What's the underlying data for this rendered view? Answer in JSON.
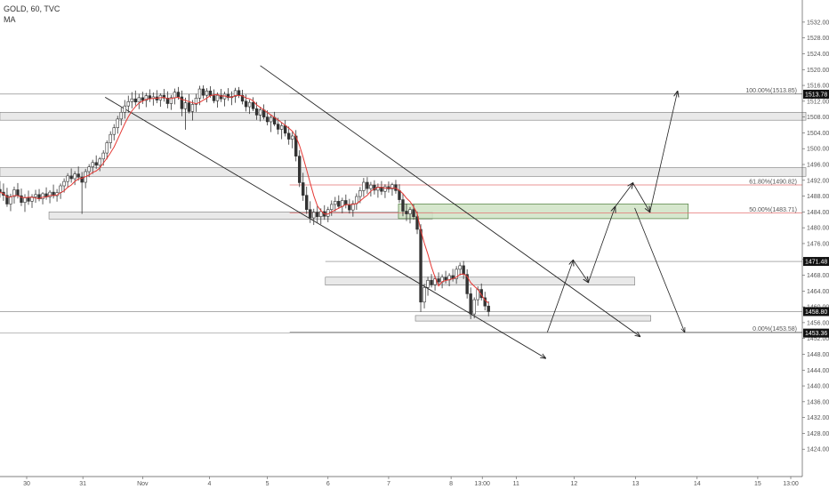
{
  "legend": {
    "symbol_line": "GOLD, 60, TVC",
    "indicator": "MA"
  },
  "colors": {
    "candle": "#333333",
    "ma": "#e53935",
    "fib": "#e57373",
    "zone_fill": "#e9e9e9",
    "zone_edge": "#7a7a7a",
    "green_fill": "#cfe3c4",
    "green_edge": "#4c7a3a",
    "axis_text": "#555555",
    "grid_line": "#7a7a7a"
  },
  "chart_data": {
    "type": "candlestick",
    "y_axis": {
      "min": 1420,
      "max": 1534,
      "ticks": [
        1424,
        1428,
        1432,
        1436,
        1440,
        1444,
        1448,
        1452,
        1456,
        1460,
        1464,
        1468,
        1472,
        1476,
        1480,
        1484,
        1488,
        1492,
        1496,
        1500,
        1504,
        1508,
        1512,
        1516,
        1520,
        1524,
        1528,
        1532
      ]
    },
    "x_axis": {
      "labels": [
        "30",
        "31",
        "Nov",
        "4",
        "5",
        "6",
        "7",
        "8",
        "13:00",
        "11",
        "12",
        "13",
        "14",
        "15",
        "13:00"
      ],
      "label_t": [
        0,
        63,
        130,
        205,
        270,
        338,
        406,
        476,
        511,
        549,
        614,
        683,
        752,
        820,
        857
      ]
    },
    "price_tags": [
      {
        "value": 1513.78,
        "label": "1513.78"
      },
      {
        "value": 1471.48,
        "label": "1471.48"
      },
      {
        "value": 1458.8,
        "label": "1458.80"
      },
      {
        "value": 1453.36,
        "label": "1453.36"
      }
    ],
    "fib_levels": [
      {
        "label": "100.00%(1513.85)",
        "value": 1513.85
      },
      {
        "label": "61.80%(1490.82)",
        "value": 1490.82
      },
      {
        "label": "50.00%(1483.71)",
        "value": 1483.71
      },
      {
        "label": "0.00%(1453.58)",
        "value": 1453.58
      }
    ],
    "zones": [
      {
        "y_top": 1509.2,
        "y_bottom": 1507.2,
        "t_start": -30,
        "t_end": 874
      },
      {
        "y_top": 1495.2,
        "y_bottom": 1493.0,
        "t_start": -30,
        "t_end": 874
      },
      {
        "y_top": 1484.0,
        "y_bottom": 1482.2,
        "t_start": 25,
        "t_end": 455
      },
      {
        "y_top": 1467.5,
        "y_bottom": 1465.5,
        "t_start": 335,
        "t_end": 682
      },
      {
        "y_top": 1457.8,
        "y_bottom": 1456.4,
        "t_start": 436,
        "t_end": 700
      }
    ],
    "green_zone": {
      "y_top": 1486.0,
      "y_bottom": 1482.3,
      "t_start": 417,
      "t_end": 742
    },
    "channel_lines": [
      {
        "t1": 262,
        "v1": 1521.0,
        "t2": 688,
        "v2": 1452.5
      },
      {
        "t1": 88,
        "v1": 1513.0,
        "t2": 582,
        "v2": 1447.0
      }
    ],
    "projection_path": [
      {
        "t": 584,
        "v": 1453.6
      },
      {
        "t": 613,
        "v": 1471.8
      },
      {
        "t": 630,
        "v": 1466.2
      },
      {
        "t": 660,
        "v": 1485.3
      },
      {
        "t": 680,
        "v": 1491.3
      },
      {
        "t": 699,
        "v": 1484.0
      },
      {
        "t": 730,
        "v": 1514.5
      }
    ],
    "projection_path_2": [
      {
        "t": 682,
        "v": 1485.0
      },
      {
        "t": 738,
        "v": 1453.6
      }
    ],
    "candles": [
      [
        -30,
        1489.7,
        1491.8,
        1487.6,
        1489.0
      ],
      [
        -26,
        1489.0,
        1491.2,
        1486.8,
        1488.2
      ],
      [
        -22,
        1488.2,
        1490.1,
        1485.3,
        1486.0
      ],
      [
        -18,
        1486.0,
        1488.6,
        1484.2,
        1487.9
      ],
      [
        -14,
        1487.9,
        1490.4,
        1486.1,
        1489.6
      ],
      [
        -10,
        1489.6,
        1491.3,
        1487.4,
        1488.1
      ],
      [
        -6,
        1488.1,
        1489.9,
        1485.5,
        1486.4
      ],
      [
        -2,
        1486.4,
        1488.5,
        1484.0,
        1487.6
      ],
      [
        2,
        1487.6,
        1489.4,
        1485.8,
        1486.7
      ],
      [
        6,
        1486.7,
        1488.5,
        1485.0,
        1487.8
      ],
      [
        10,
        1487.8,
        1489.6,
        1486.3,
        1488.4
      ],
      [
        14,
        1488.4,
        1489.8,
        1486.7,
        1487.3
      ],
      [
        18,
        1487.3,
        1489.0,
        1485.9,
        1488.6
      ],
      [
        22,
        1488.6,
        1490.2,
        1487.1,
        1487.8
      ],
      [
        26,
        1487.8,
        1489.5,
        1486.2,
        1489.0
      ],
      [
        30,
        1489.0,
        1490.9,
        1487.4,
        1488.1
      ],
      [
        34,
        1488.1,
        1489.8,
        1486.6,
        1488.9
      ],
      [
        38,
        1488.9,
        1491.2,
        1487.3,
        1490.6
      ],
      [
        42,
        1490.6,
        1492.5,
        1488.9,
        1491.7
      ],
      [
        46,
        1491.7,
        1493.8,
        1490.1,
        1493.1
      ],
      [
        50,
        1493.1,
        1495.0,
        1491.4,
        1492.4
      ],
      [
        54,
        1492.4,
        1494.3,
        1490.8,
        1493.6
      ],
      [
        58,
        1493.6,
        1495.5,
        1491.9,
        1492.8
      ],
      [
        62,
        1492.8,
        1494.1,
        1483.5,
        1491.5
      ],
      [
        66,
        1491.5,
        1494.9,
        1490.0,
        1494.2
      ],
      [
        70,
        1494.2,
        1496.1,
        1492.8,
        1495.4
      ],
      [
        74,
        1495.4,
        1497.2,
        1493.6,
        1496.5
      ],
      [
        78,
        1496.5,
        1498.3,
        1494.9,
        1495.8
      ],
      [
        82,
        1495.8,
        1497.9,
        1494.3,
        1497.4
      ],
      [
        86,
        1497.4,
        1499.6,
        1495.7,
        1498.9
      ],
      [
        90,
        1498.9,
        1502.1,
        1497.3,
        1501.5
      ],
      [
        94,
        1501.5,
        1504.4,
        1500.0,
        1503.6
      ],
      [
        98,
        1503.6,
        1506.2,
        1502.1,
        1505.3
      ],
      [
        102,
        1505.3,
        1508.3,
        1503.8,
        1507.5
      ],
      [
        106,
        1507.5,
        1510.4,
        1505.9,
        1509.2
      ],
      [
        110,
        1509.2,
        1512.3,
        1507.6,
        1510.8
      ],
      [
        114,
        1510.8,
        1513.4,
        1509.1,
        1511.9
      ],
      [
        118,
        1511.9,
        1514.3,
        1510.2,
        1512.6
      ],
      [
        122,
        1512.6,
        1514.7,
        1510.9,
        1511.8
      ],
      [
        126,
        1511.8,
        1513.9,
        1510.0,
        1512.9
      ],
      [
        130,
        1512.9,
        1514.4,
        1511.3,
        1512.2
      ],
      [
        134,
        1512.2,
        1514.1,
        1510.5,
        1513.4
      ],
      [
        138,
        1513.4,
        1515.0,
        1511.8,
        1512.7
      ],
      [
        142,
        1512.7,
        1514.2,
        1510.9,
        1513.1
      ],
      [
        146,
        1513.1,
        1514.8,
        1511.5,
        1512.3
      ],
      [
        150,
        1512.3,
        1514.0,
        1510.6,
        1513.5
      ],
      [
        154,
        1513.5,
        1515.1,
        1511.9,
        1512.8
      ],
      [
        158,
        1512.8,
        1514.5,
        1510.2,
        1511.4
      ],
      [
        162,
        1511.4,
        1513.6,
        1509.8,
        1512.9
      ],
      [
        166,
        1512.9,
        1515.2,
        1511.2,
        1514.3
      ],
      [
        170,
        1514.3,
        1515.6,
        1512.4,
        1513.1
      ],
      [
        174,
        1513.1,
        1514.7,
        1508.2,
        1510.1
      ],
      [
        178,
        1510.1,
        1512.9,
        1504.8,
        1511.6
      ],
      [
        182,
        1511.6,
        1513.8,
        1508.9,
        1509.4
      ],
      [
        186,
        1509.4,
        1512.3,
        1507.1,
        1511.2
      ],
      [
        190,
        1511.2,
        1513.9,
        1509.3,
        1512.8
      ],
      [
        194,
        1512.8,
        1515.9,
        1511.0,
        1515.1
      ],
      [
        198,
        1515.1,
        1516.0,
        1512.6,
        1513.5
      ],
      [
        202,
        1513.5,
        1515.3,
        1511.7,
        1514.6
      ],
      [
        206,
        1514.6,
        1515.8,
        1512.9,
        1513.4
      ],
      [
        210,
        1513.4,
        1515.0,
        1511.5,
        1512.1
      ],
      [
        214,
        1512.1,
        1514.2,
        1510.4,
        1513.5
      ],
      [
        218,
        1513.5,
        1515.1,
        1511.8,
        1512.6
      ],
      [
        222,
        1512.6,
        1514.4,
        1510.7,
        1513.8
      ],
      [
        226,
        1513.8,
        1515.3,
        1512.1,
        1512.9
      ],
      [
        230,
        1512.9,
        1514.5,
        1511.0,
        1513.2
      ],
      [
        234,
        1513.2,
        1515.4,
        1511.6,
        1514.7
      ],
      [
        238,
        1514.7,
        1515.6,
        1512.8,
        1513.5
      ],
      [
        242,
        1513.5,
        1514.9,
        1511.2,
        1512.0
      ],
      [
        246,
        1512.0,
        1513.7,
        1509.4,
        1510.6
      ],
      [
        250,
        1510.6,
        1512.4,
        1508.8,
        1511.7
      ],
      [
        254,
        1511.7,
        1513.0,
        1509.5,
        1510.1
      ],
      [
        258,
        1510.1,
        1511.8,
        1507.3,
        1508.5
      ],
      [
        262,
        1508.5,
        1510.6,
        1506.9,
        1509.8
      ],
      [
        266,
        1509.8,
        1511.2,
        1507.4,
        1508.0
      ],
      [
        270,
        1508.0,
        1509.7,
        1505.9,
        1506.8
      ],
      [
        274,
        1506.8,
        1508.6,
        1504.2,
        1507.9
      ],
      [
        278,
        1507.9,
        1509.3,
        1505.7,
        1506.2
      ],
      [
        282,
        1506.2,
        1507.8,
        1503.6,
        1504.9
      ],
      [
        286,
        1504.9,
        1506.7,
        1502.4,
        1505.8
      ],
      [
        290,
        1505.8,
        1507.2,
        1503.1,
        1503.9
      ],
      [
        294,
        1503.9,
        1505.6,
        1501.0,
        1502.4
      ],
      [
        298,
        1502.4,
        1504.3,
        1500.1,
        1503.2
      ],
      [
        302,
        1503.2,
        1504.7,
        1496.8,
        1498.1
      ],
      [
        306,
        1498.1,
        1499.6,
        1490.3,
        1491.4
      ],
      [
        310,
        1491.4,
        1493.9,
        1486.8,
        1488.2
      ],
      [
        314,
        1488.2,
        1490.4,
        1483.5,
        1484.6
      ],
      [
        318,
        1484.6,
        1486.7,
        1481.2,
        1482.5
      ],
      [
        322,
        1482.5,
        1484.8,
        1480.7,
        1483.9
      ],
      [
        326,
        1483.9,
        1485.6,
        1481.3,
        1482.8
      ],
      [
        330,
        1482.8,
        1484.9,
        1480.9,
        1484.1
      ],
      [
        334,
        1484.1,
        1485.7,
        1482.0,
        1482.9
      ],
      [
        338,
        1482.9,
        1485.3,
        1481.4,
        1484.6
      ],
      [
        342,
        1484.6,
        1486.9,
        1483.0,
        1485.9
      ],
      [
        346,
        1485.9,
        1487.8,
        1484.1,
        1486.7
      ],
      [
        350,
        1486.7,
        1488.2,
        1484.8,
        1485.4
      ],
      [
        354,
        1485.4,
        1487.6,
        1483.7,
        1486.9
      ],
      [
        358,
        1486.9,
        1488.4,
        1484.9,
        1485.8
      ],
      [
        362,
        1485.8,
        1487.3,
        1483.6,
        1484.5
      ],
      [
        366,
        1484.5,
        1486.9,
        1482.8,
        1486.1
      ],
      [
        370,
        1486.1,
        1488.7,
        1484.5,
        1487.9
      ],
      [
        374,
        1487.9,
        1490.3,
        1486.2,
        1489.4
      ],
      [
        378,
        1489.4,
        1492.6,
        1487.8,
        1491.5
      ],
      [
        382,
        1491.5,
        1492.8,
        1488.6,
        1489.9
      ],
      [
        386,
        1489.9,
        1491.6,
        1487.9,
        1490.8
      ],
      [
        390,
        1490.8,
        1492.0,
        1488.4,
        1489.5
      ],
      [
        394,
        1489.5,
        1491.2,
        1487.6,
        1490.3
      ],
      [
        398,
        1490.3,
        1491.8,
        1488.3,
        1489.2
      ],
      [
        402,
        1489.2,
        1491.0,
        1487.5,
        1490.4
      ],
      [
        406,
        1490.4,
        1491.7,
        1488.9,
        1489.8
      ],
      [
        410,
        1489.8,
        1491.4,
        1488.1,
        1490.9
      ],
      [
        414,
        1490.9,
        1492.1,
        1488.6,
        1489.4
      ],
      [
        418,
        1489.4,
        1491.0,
        1486.3,
        1487.1
      ],
      [
        422,
        1487.1,
        1488.6,
        1482.9,
        1484.2
      ],
      [
        426,
        1484.2,
        1486.1,
        1481.7,
        1483.5
      ],
      [
        430,
        1483.5,
        1485.2,
        1481.1,
        1484.6
      ],
      [
        434,
        1484.6,
        1485.9,
        1482.0,
        1482.8
      ],
      [
        438,
        1482.8,
        1484.1,
        1478.4,
        1479.6
      ],
      [
        442,
        1479.6,
        1480.9,
        1458.7,
        1461.2
      ],
      [
        446,
        1461.2,
        1465.8,
        1459.6,
        1464.9
      ],
      [
        450,
        1464.9,
        1467.6,
        1462.8,
        1466.7
      ],
      [
        454,
        1466.7,
        1468.3,
        1464.9,
        1465.6
      ],
      [
        458,
        1465.6,
        1467.9,
        1464.1,
        1467.1
      ],
      [
        462,
        1467.1,
        1468.7,
        1465.5,
        1466.3
      ],
      [
        466,
        1466.3,
        1468.2,
        1464.7,
        1467.5
      ],
      [
        470,
        1467.5,
        1469.1,
        1465.9,
        1466.8
      ],
      [
        474,
        1466.8,
        1468.5,
        1465.2,
        1467.9
      ],
      [
        478,
        1467.9,
        1469.6,
        1466.4,
        1467.1
      ],
      [
        482,
        1467.1,
        1470.3,
        1465.8,
        1469.5
      ],
      [
        486,
        1469.5,
        1471.2,
        1467.9,
        1470.4
      ],
      [
        490,
        1470.4,
        1471.6,
        1467.0,
        1468.2
      ],
      [
        494,
        1468.2,
        1469.5,
        1462.1,
        1463.3
      ],
      [
        498,
        1463.3,
        1464.9,
        1456.9,
        1458.2
      ],
      [
        502,
        1458.2,
        1462.4,
        1457.1,
        1461.8
      ],
      [
        506,
        1461.8,
        1465.2,
        1460.3,
        1464.4
      ],
      [
        510,
        1464.4,
        1465.9,
        1461.6,
        1462.3
      ],
      [
        514,
        1462.3,
        1463.8,
        1459.1,
        1460.2
      ],
      [
        518,
        1460.2,
        1461.4,
        1457.6,
        1458.8
      ]
    ]
  }
}
